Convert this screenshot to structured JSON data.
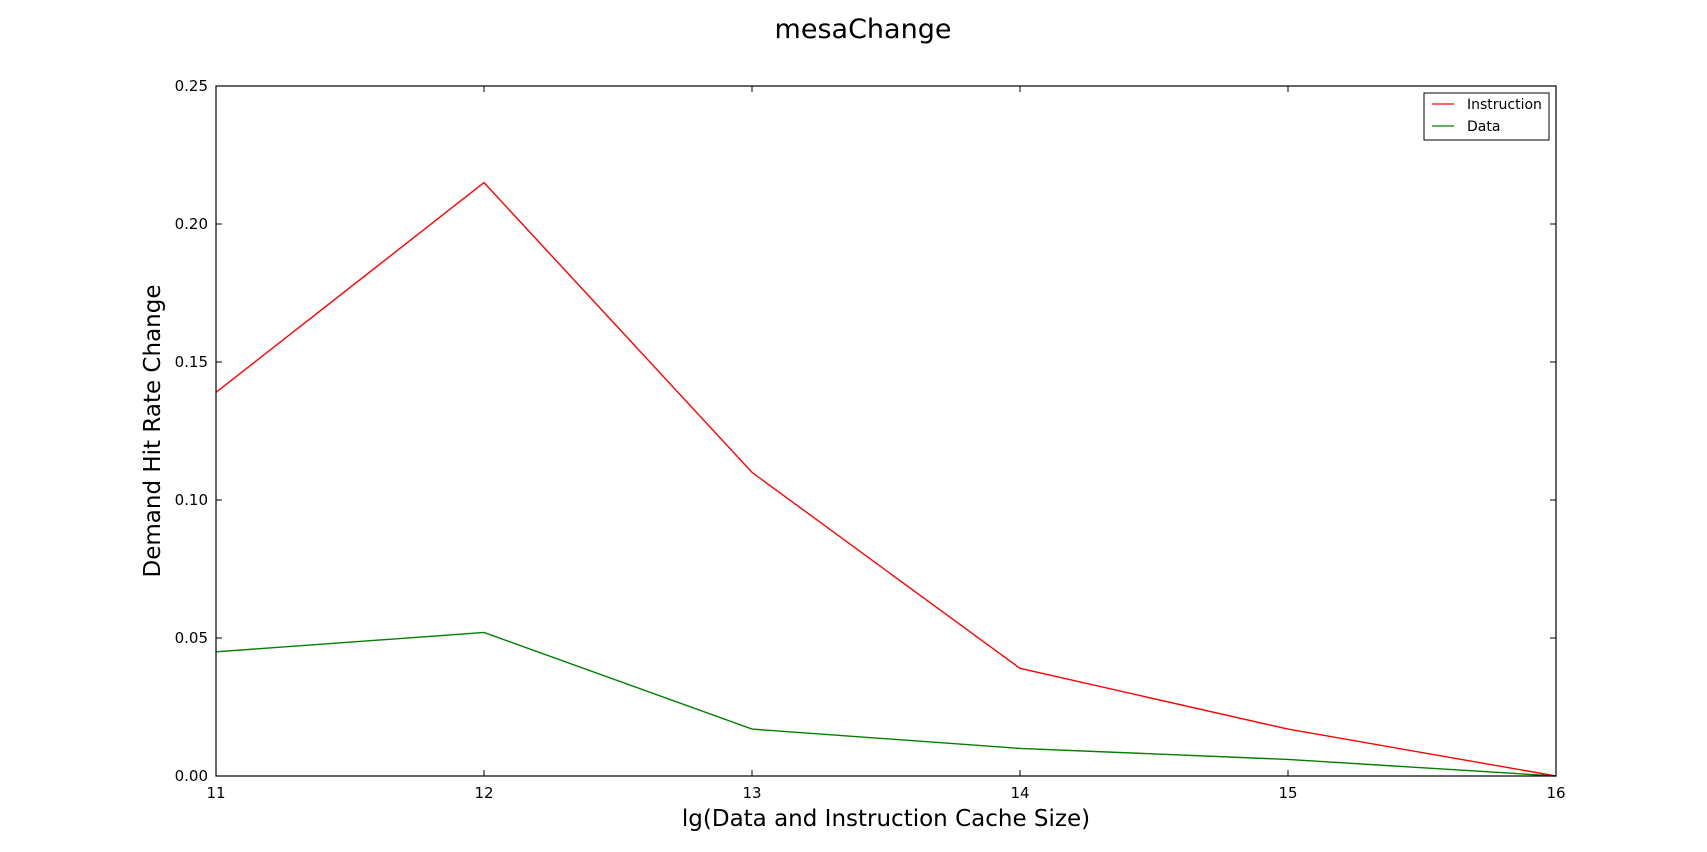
{
  "chart_data": {
    "type": "line",
    "title": "mesaChange",
    "xlabel": "lg(Data and Instruction Cache Size)",
    "ylabel": "Demand Hit Rate Change",
    "x": [
      11,
      12,
      13,
      14,
      15,
      16
    ],
    "xlim": [
      11,
      16
    ],
    "ylim": [
      0,
      0.25
    ],
    "xticks": [
      "11",
      "12",
      "13",
      "14",
      "15",
      "16"
    ],
    "yticks": [
      "0.00",
      "0.05",
      "0.10",
      "0.15",
      "0.20",
      "0.25"
    ],
    "series": [
      {
        "name": "Instruction",
        "color": "#ff0000",
        "values": [
          0.139,
          0.215,
          0.11,
          0.039,
          0.017,
          0.0
        ]
      },
      {
        "name": "Data",
        "color": "#008000",
        "values": [
          0.045,
          0.052,
          0.017,
          0.01,
          0.006,
          0.0
        ]
      }
    ],
    "legend": "top-right",
    "grid": false
  }
}
